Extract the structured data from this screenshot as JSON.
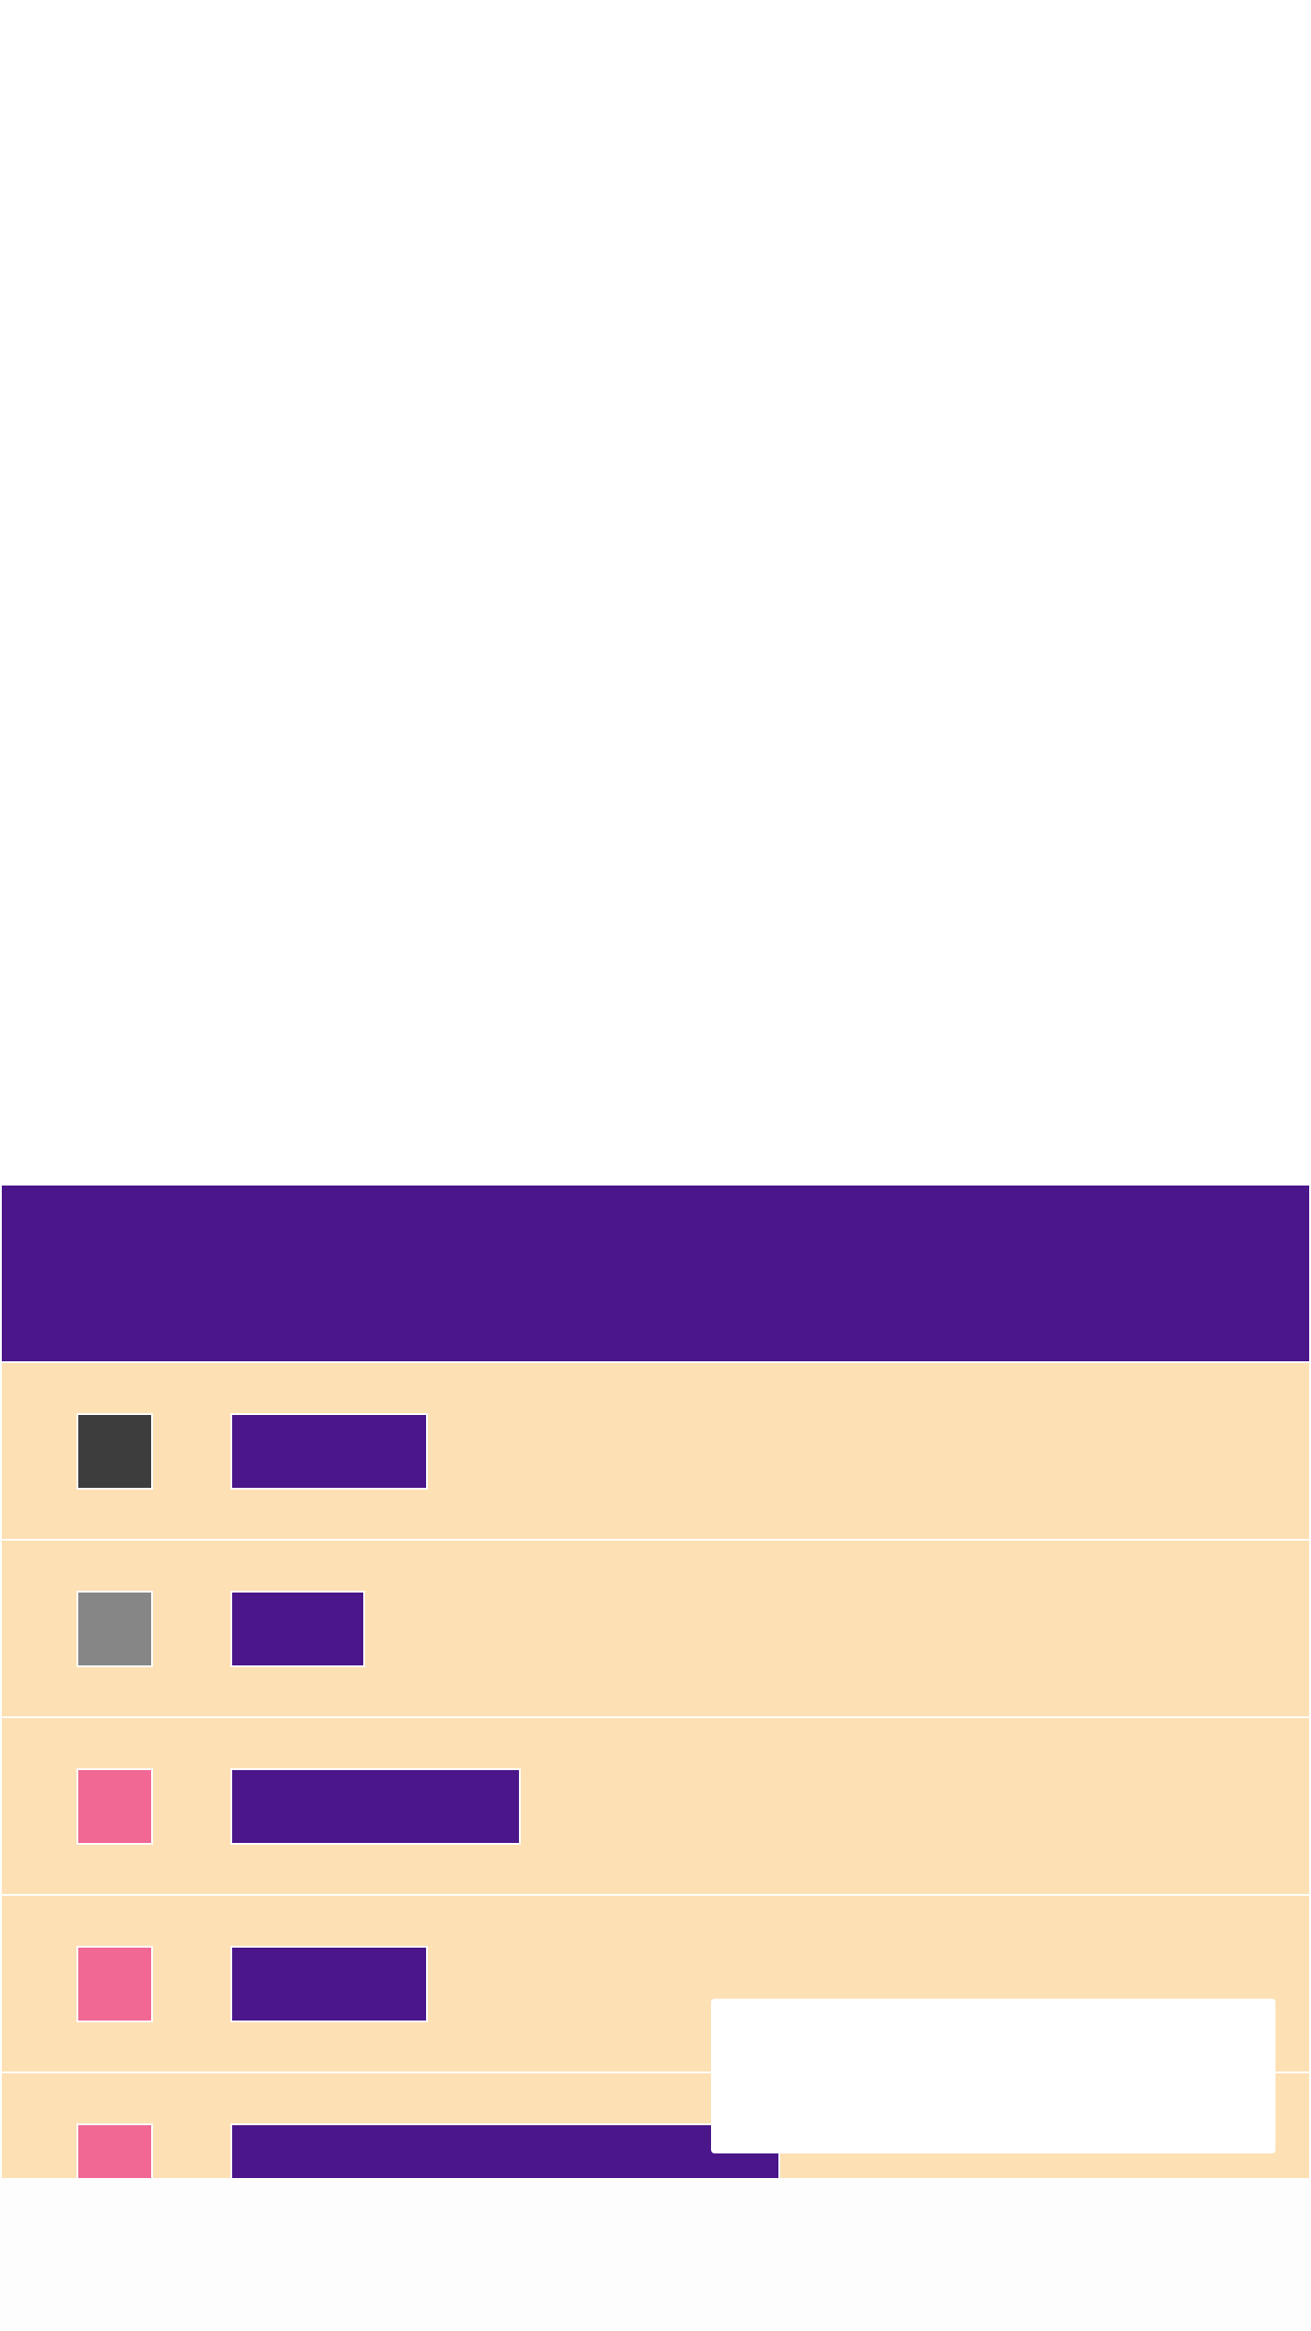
{
  "theme": {
    "header_color": "#4a168a",
    "row_background": "#fde0b4",
    "bar_color": "#4a168a"
  },
  "header": {
    "title": ""
  },
  "rows": [
    {
      "label": "",
      "swatch_color": "#3d3d3d",
      "level": 0.19
    },
    {
      "label": "",
      "swatch_color": "#868686",
      "level": 0.13
    },
    {
      "label": "",
      "swatch_color": "#f06893",
      "level": 0.28
    },
    {
      "label": "",
      "swatch_color": "#f06893",
      "level": 0.19
    },
    {
      "label": "",
      "swatch_color": "#f06893",
      "level": 0.53
    }
  ],
  "popup": {
    "text": ""
  }
}
